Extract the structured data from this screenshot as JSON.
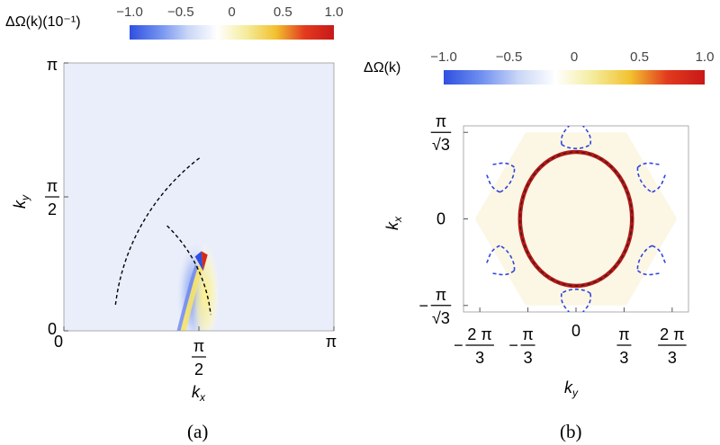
{
  "colorbar_stops": [
    "#2f4fe0",
    "#6f8ff0",
    "#c9d6f6",
    "#ffffff",
    "#f4ec9c",
    "#f2c230",
    "#e23a1e",
    "#c81818"
  ],
  "chart_data": [
    {
      "type": "heatmap",
      "panel_label": "(a)",
      "colorbar": {
        "label": "ΔΩ(k)(10⁻¹)",
        "ticks": [
          "−1.0",
          "−0.5",
          "0",
          "0.5",
          "1.0"
        ],
        "range": [
          -1.0,
          1.0
        ]
      },
      "xlabel": "k",
      "xlabel_sub": "x",
      "ylabel": "k",
      "ylabel_sub": "y",
      "x_ticks": [
        {
          "value": 0,
          "label": "0"
        },
        {
          "value": 1.5708,
          "num": "π",
          "den": "2"
        },
        {
          "value": 3.1416,
          "label": "π"
        }
      ],
      "y_ticks": [
        {
          "value": 0,
          "label": "0"
        },
        {
          "value": 1.5708,
          "num": "π",
          "den": "2"
        },
        {
          "value": 3.1416,
          "label": "π"
        }
      ],
      "xlim": [
        0,
        3.1416
      ],
      "ylim": [
        0,
        3.1416
      ],
      "fermi_surface": {
        "style": "dashed",
        "left_arc": {
          "center": [
            3.1416,
            0
          ],
          "radius": 2.56,
          "from_x": 0,
          "to_x": 1.6
        },
        "right_arc": {
          "center": [
            0,
            0
          ],
          "radius": 1.72,
          "from_x": 1.2,
          "to_x": 3.1416
        }
      },
      "hotspot": {
        "k": [
          1.62,
          0.85
        ],
        "negative_side": "left",
        "positive_side": "right"
      },
      "background_value": -0.05
    },
    {
      "type": "heatmap",
      "panel_label": "(b)",
      "colorbar": {
        "label": "ΔΩ(k)",
        "ticks": [
          "−1.0",
          "−0.5",
          "0",
          "0.5",
          "1.0"
        ],
        "range": [
          -1.0,
          1.0
        ]
      },
      "xlabel": "k",
      "xlabel_sub": "y",
      "ylabel": "k",
      "ylabel_sub": "x",
      "x_ticks": [
        {
          "value": -2.0944,
          "sign": "−",
          "num": "2 π",
          "den": "3"
        },
        {
          "value": -1.0472,
          "sign": "−",
          "num": "π",
          "den": "3"
        },
        {
          "value": 0,
          "label": "0"
        },
        {
          "value": 1.0472,
          "num": "π",
          "den": "3"
        },
        {
          "value": 2.0944,
          "num": "2 π",
          "den": "3"
        }
      ],
      "y_ticks": [
        {
          "value": 1.8138,
          "num": "π",
          "den": "√3"
        },
        {
          "value": 0,
          "label": "0"
        },
        {
          "value": -1.8138,
          "sign": "−",
          "num": "π",
          "den": "√3"
        }
      ],
      "xlim": [
        -2.45,
        2.45
      ],
      "ylim": [
        -1.95,
        1.95
      ],
      "brillouin_zone": "hexagon",
      "brillouin_zone_value": 0.05,
      "fermi_circle": {
        "center": [
          0,
          0
        ],
        "radius": 1.22,
        "value": 1.0,
        "style": "dashed-black"
      },
      "dashed_pockets": {
        "count": 6,
        "style": "dashed",
        "color": "#3344dd",
        "value": -1.0
      }
    }
  ]
}
